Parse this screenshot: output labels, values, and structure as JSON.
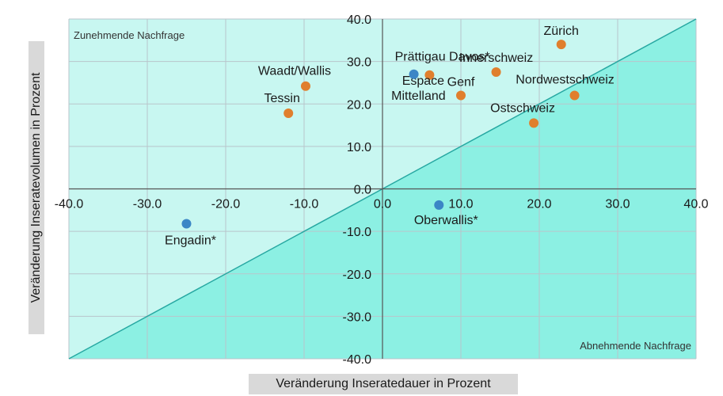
{
  "chart_data": {
    "type": "scatter",
    "xlabel": "Veränderung Inseratedauer in Prozent",
    "ylabel": "Veränderung Inseratevolumen in Prozent",
    "xlim": [
      -40,
      40
    ],
    "ylim": [
      -40,
      40
    ],
    "xticks": [
      "-40.0",
      "-30.0",
      "-20.0",
      "-10.0",
      "0.0",
      "10.0",
      "20.0",
      "30.0",
      "40.0"
    ],
    "yticks": [
      "40.0",
      "30.0",
      "20.0",
      "10.0",
      "0.0",
      "-10.0",
      "-20.0",
      "-30.0",
      "-40.0"
    ],
    "grid": true,
    "regions": {
      "upper": "Zunehmende Nachfrage",
      "lower": "Abnehmende Nachfrage"
    },
    "colors": {
      "upper_region": "#c8f7f1",
      "lower_region": "#8cf0e3",
      "diagonal": "#27a8a2",
      "orange_point": "#e07f2d",
      "blue_point": "#3b86c6",
      "grid": "#b9c5cb"
    },
    "points": [
      {
        "label": "Zürich",
        "x": 22.8,
        "y": 34.0,
        "color": "orange"
      },
      {
        "label": "Innerschweiz",
        "x": 14.5,
        "y": 27.5,
        "color": "orange"
      },
      {
        "label": "Nordwestschweiz",
        "x": 24.5,
        "y": 22.0,
        "color": "orange"
      },
      {
        "label": "Ostschweiz",
        "x": 19.3,
        "y": 15.5,
        "color": "orange"
      },
      {
        "label": "Genf",
        "x": 10.0,
        "y": 22.0,
        "color": "orange"
      },
      {
        "label": "Espace Mittelland",
        "x": 6.0,
        "y": 26.8,
        "color": "orange"
      },
      {
        "label": "Prättigau Davos*",
        "x": 4.0,
        "y": 27.0,
        "color": "blue"
      },
      {
        "label": "Waadt/Wallis",
        "x": -9.8,
        "y": 24.2,
        "color": "orange"
      },
      {
        "label": "Tessin",
        "x": -12.0,
        "y": 17.8,
        "color": "orange"
      },
      {
        "label": "Oberwallis*",
        "x": 7.2,
        "y": -3.8,
        "color": "blue"
      },
      {
        "label": "Engadin*",
        "x": -25.0,
        "y": -8.2,
        "color": "blue"
      }
    ]
  }
}
